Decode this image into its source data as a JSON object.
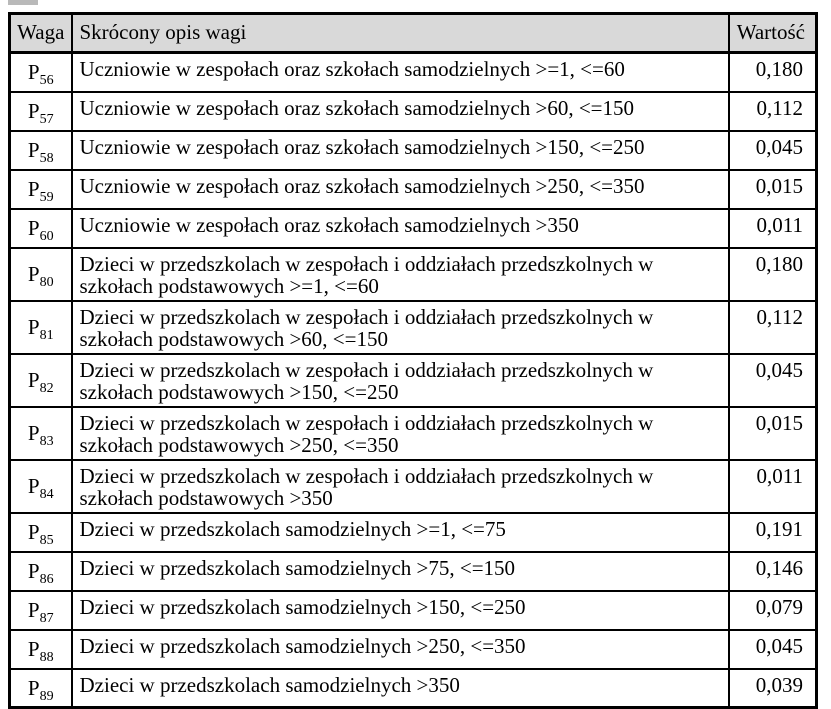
{
  "colors": {
    "page_bg": "#ffffff",
    "text": "#000000",
    "border": "#000000",
    "header_bg": "#d9d9d9"
  },
  "table": {
    "headers": [
      "Waga",
      "Skrócony opis wagi",
      "Wartość"
    ],
    "rows": [
      {
        "base": "P",
        "sub": "56",
        "desc": "Uczniowie w zespołach oraz szkołach samodzielnych >=1, <=60",
        "value": "0,180"
      },
      {
        "base": "P",
        "sub": "57",
        "desc": "Uczniowie w zespołach oraz szkołach samodzielnych >60, <=150",
        "value": "0,112"
      },
      {
        "base": "P",
        "sub": "58",
        "desc": "Uczniowie w zespołach oraz szkołach samodzielnych >150, <=250",
        "value": "0,045"
      },
      {
        "base": "P",
        "sub": "59",
        "desc": "Uczniowie w zespołach oraz szkołach samodzielnych >250, <=350",
        "value": "0,015"
      },
      {
        "base": "P",
        "sub": "60",
        "desc": "Uczniowie w zespołach oraz szkołach samodzielnych >350",
        "value": "0,011"
      },
      {
        "base": "P",
        "sub": "80",
        "desc": "Dzieci w przedszkolach w zespołach i oddziałach przedszkolnych w\nszkołach podstawowych >=1, <=60",
        "value": "0,180"
      },
      {
        "base": "P",
        "sub": "81",
        "desc": "Dzieci w przedszkolach w zespołach i oddziałach przedszkolnych w\nszkołach podstawowych >60, <=150",
        "value": "0,112"
      },
      {
        "base": "P",
        "sub": "82",
        "desc": "Dzieci w przedszkolach w zespołach i oddziałach przedszkolnych w\nszkołach podstawowych >150, <=250",
        "value": "0,045"
      },
      {
        "base": "P",
        "sub": "83",
        "desc": "Dzieci w przedszkolach w zespołach i oddziałach przedszkolnych w\nszkołach podstawowych >250, <=350",
        "value": "0,015"
      },
      {
        "base": "P",
        "sub": "84",
        "desc": "Dzieci w przedszkolach w zespołach i oddziałach przedszkolnych w\nszkołach podstawowych >350",
        "value": "0,011"
      },
      {
        "base": "P",
        "sub": "85",
        "desc": "Dzieci w przedszkolach samodzielnych >=1, <=75",
        "value": "0,191"
      },
      {
        "base": "P",
        "sub": "86",
        "desc": "Dzieci w przedszkolach samodzielnych >75, <=150",
        "value": "0,146"
      },
      {
        "base": "P",
        "sub": "87",
        "desc": "Dzieci w przedszkolach samodzielnych >150, <=250",
        "value": "0,079"
      },
      {
        "base": "P",
        "sub": "88",
        "desc": "Dzieci w przedszkolach samodzielnych >250, <=350",
        "value": "0,045"
      },
      {
        "base": "P",
        "sub": "89",
        "desc": "Dzieci w przedszkolach samodzielnych >350",
        "value": "0,039"
      }
    ]
  }
}
